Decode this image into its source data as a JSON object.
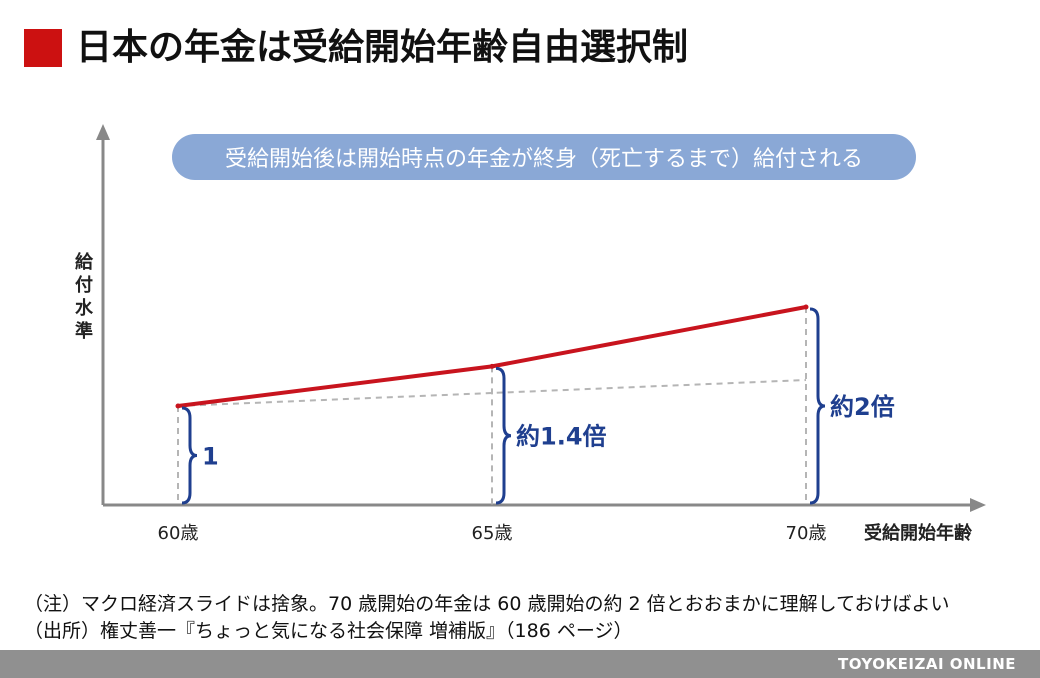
{
  "title": "日本の年金は受給開始年齢自由選択制",
  "callout": "受給開始後は開始時点の年金が終身（死亡するまで）給付される",
  "colors": {
    "accent": "#cc1111",
    "line": "#c8141e",
    "brace": "#1f3f8f",
    "callout_bg": "#8aa8d6",
    "axis": "#888888",
    "footer": "#909090"
  },
  "chart_data": {
    "type": "line",
    "x": [
      60,
      65,
      70
    ],
    "x_tick_labels": [
      "60歳",
      "65歳",
      "70歳"
    ],
    "xlabel": "受給開始年齢",
    "ylabel": "給付水準",
    "series": [
      {
        "values": [
          1,
          1.4,
          2
        ]
      }
    ],
    "annotations": [
      "1",
      "約1.4倍",
      "約2倍"
    ],
    "reference_line": "dashed, from 60歳 level",
    "xlim": [
      58,
      77
    ],
    "ylim": [
      0,
      3
    ]
  },
  "notes": [
    "（注）マクロ経済スライドは捨象。70 歳開始の年金は 60 歳開始の約 2 倍とおおまかに理解しておけばよい",
    "（出所）権丈善一『ちょっと気になる社会保障 増補版』（186 ページ）"
  ],
  "footer": {
    "brand": "TOYOKEIZAI ONLINE"
  }
}
